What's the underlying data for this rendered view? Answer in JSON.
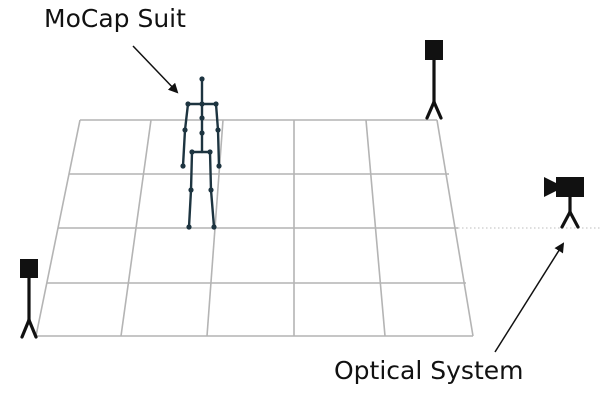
{
  "labels": {
    "mocap_suit": "MoCap Suit",
    "optical_system": "Optical System"
  },
  "colors": {
    "background": "#ffffff",
    "grid_line": "#b4b4b4",
    "skeleton": "#1d3440",
    "camera": "#111111",
    "text": "#111111"
  },
  "icons": [
    "camera-icon",
    "tripod-icon",
    "skeleton-figure"
  ]
}
